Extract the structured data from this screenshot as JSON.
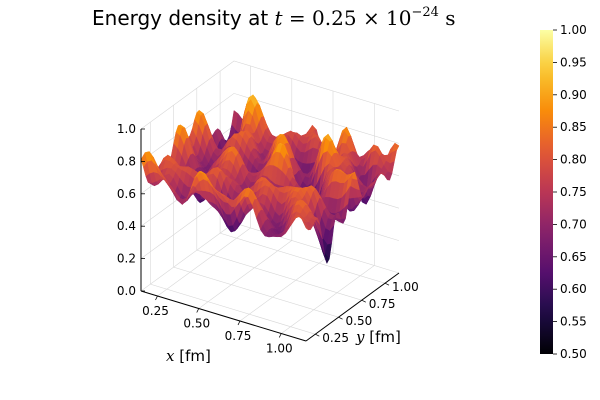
{
  "chart_data": {
    "type": "surface",
    "title": {
      "text": "Energy density at ",
      "var": "t",
      "eq": " = 0.25 × 10",
      "exp": "−24",
      "unit": " s"
    },
    "xlabel": {
      "var": "x",
      "unit": " [fm]"
    },
    "ylabel": {
      "var": "y",
      "unit": " [fm]"
    },
    "x_ticks": [
      "0.25",
      "0.50",
      "0.75",
      "1.00"
    ],
    "x_tick_values": [
      0.25,
      0.5,
      0.75,
      1.0
    ],
    "y_ticks": [
      "0.25",
      "0.50",
      "0.75",
      "1.00"
    ],
    "y_tick_values": [
      0.25,
      0.5,
      0.75,
      1.0
    ],
    "z_ticks": [
      "0.0",
      "0.2",
      "0.4",
      "0.6",
      "0.8",
      "1.0"
    ],
    "z_tick_values": [
      0.0,
      0.2,
      0.4,
      0.6,
      0.8,
      1.0
    ],
    "xlim": [
      0.15,
      1.15
    ],
    "ylim": [
      0.15,
      1.15
    ],
    "zlim": [
      0.0,
      1.0
    ],
    "colorbar": {
      "ticks": [
        "0.50",
        "0.55",
        "0.60",
        "0.65",
        "0.70",
        "0.75",
        "0.80",
        "0.85",
        "0.90",
        "0.95",
        "1.00"
      ],
      "tick_values": [
        0.5,
        0.55,
        0.6,
        0.65,
        0.7,
        0.75,
        0.8,
        0.85,
        0.9,
        0.95,
        1.0
      ],
      "range": [
        0.5,
        1.0
      ],
      "colormap": "inferno"
    },
    "z_range_approx": [
      0.3,
      0.95
    ],
    "grid": true,
    "legend": "none"
  }
}
